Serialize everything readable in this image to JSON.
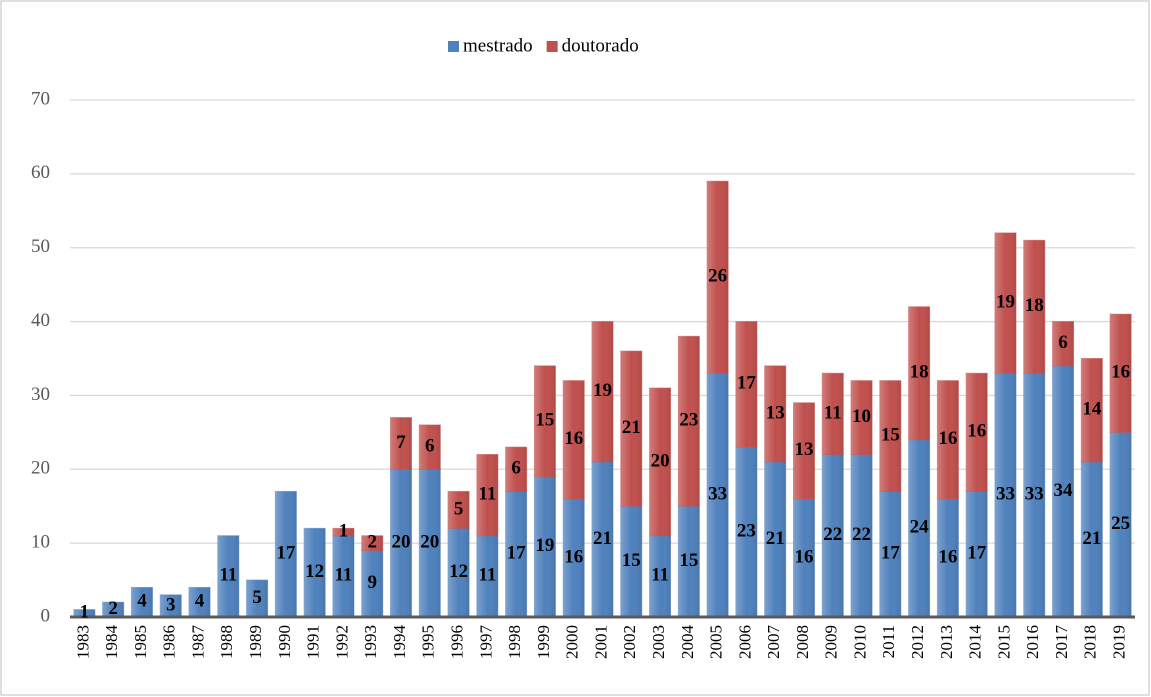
{
  "chart_data": {
    "type": "stacked_bar",
    "categories": [
      "1983",
      "1984",
      "1985",
      "1986",
      "1987",
      "1988",
      "1989",
      "1990",
      "1991",
      "1992",
      "1993",
      "1994",
      "1995",
      "1996",
      "1997",
      "1998",
      "1999",
      "2000",
      "2001",
      "2002",
      "2003",
      "2004",
      "2005",
      "2006",
      "2007",
      "2008",
      "2009",
      "2010",
      "2011",
      "2012",
      "2013",
      "2014",
      "2015",
      "2016",
      "2017",
      "2018",
      "2019"
    ],
    "series": [
      {
        "name": "mestrado",
        "color": "#4f81bd",
        "values": [
          1,
          2,
          4,
          3,
          4,
          11,
          5,
          17,
          12,
          11,
          9,
          20,
          20,
          12,
          11,
          17,
          19,
          16,
          21,
          15,
          11,
          15,
          33,
          23,
          21,
          16,
          22,
          22,
          17,
          24,
          16,
          17,
          33,
          33,
          34,
          21,
          25
        ]
      },
      {
        "name": "doutorado",
        "color": "#c0504d",
        "values": [
          null,
          null,
          null,
          null,
          null,
          null,
          null,
          null,
          null,
          1,
          2,
          7,
          6,
          5,
          11,
          6,
          15,
          16,
          19,
          21,
          20,
          23,
          26,
          17,
          13,
          13,
          11,
          10,
          15,
          18,
          16,
          16,
          19,
          18,
          6,
          14,
          16
        ]
      }
    ],
    "ylim": [
      0,
      70
    ],
    "yticks": [
      0,
      10,
      20,
      30,
      40,
      50,
      60,
      70
    ],
    "grid": true,
    "legend": "top"
  }
}
